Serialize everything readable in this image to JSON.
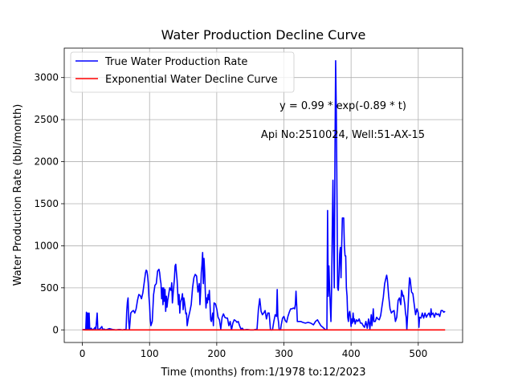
{
  "chart_data": {
    "type": "line",
    "title": "Water Production Decline Curve",
    "xlabel": "Time (months) from:1/1978 to:12/2023",
    "ylabel": "Water Production Rate (bbl/month)",
    "xlim": [
      -27,
      566
    ],
    "ylim": [
      -150,
      3350
    ],
    "xticks": [
      0,
      100,
      200,
      300,
      400,
      500
    ],
    "yticks": [
      0,
      500,
      1000,
      1500,
      2000,
      2500,
      3000
    ],
    "grid": true,
    "legend_position": "upper-left",
    "annotations": {
      "equation": "y = 0.99 * exp(-0.89 * t)",
      "well": "Api No:2510024, Well:51-AX-15"
    },
    "series": [
      {
        "name": "True Water Production Rate",
        "color": "#0000ff",
        "points": [
          [
            0,
            0
          ],
          [
            3,
            5
          ],
          [
            5,
            0
          ],
          [
            6,
            210
          ],
          [
            7,
            0
          ],
          [
            8,
            200
          ],
          [
            9,
            5
          ],
          [
            10,
            200
          ],
          [
            11,
            0
          ],
          [
            13,
            20
          ],
          [
            15,
            0
          ],
          [
            17,
            10
          ],
          [
            19,
            30
          ],
          [
            20,
            0
          ],
          [
            22,
            200
          ],
          [
            23,
            10
          ],
          [
            25,
            5
          ],
          [
            27,
            20
          ],
          [
            29,
            40
          ],
          [
            30,
            5
          ],
          [
            32,
            10
          ],
          [
            35,
            0
          ],
          [
            40,
            15
          ],
          [
            45,
            5
          ],
          [
            50,
            0
          ],
          [
            55,
            5
          ],
          [
            60,
            0
          ],
          [
            63,
            5
          ],
          [
            65,
            0
          ],
          [
            66,
            220
          ],
          [
            67,
            330
          ],
          [
            68,
            380
          ],
          [
            69,
            100
          ],
          [
            70,
            0
          ],
          [
            72,
            200
          ],
          [
            74,
            220
          ],
          [
            76,
            230
          ],
          [
            78,
            200
          ],
          [
            80,
            250
          ],
          [
            82,
            350
          ],
          [
            84,
            420
          ],
          [
            86,
            410
          ],
          [
            88,
            370
          ],
          [
            90,
            440
          ],
          [
            92,
            560
          ],
          [
            94,
            680
          ],
          [
            95,
            710
          ],
          [
            96,
            700
          ],
          [
            97,
            650
          ],
          [
            98,
            560
          ],
          [
            99,
            400
          ],
          [
            100,
            300
          ],
          [
            101,
            130
          ],
          [
            102,
            50
          ],
          [
            104,
            100
          ],
          [
            106,
            420
          ],
          [
            108,
            530
          ],
          [
            110,
            550
          ],
          [
            112,
            700
          ],
          [
            114,
            720
          ],
          [
            115,
            680
          ],
          [
            116,
            600
          ],
          [
            117,
            550
          ],
          [
            118,
            370
          ],
          [
            119,
            500
          ],
          [
            120,
            300
          ],
          [
            121,
            500
          ],
          [
            122,
            340
          ],
          [
            123,
            480
          ],
          [
            124,
            220
          ],
          [
            125,
            400
          ],
          [
            126,
            270
          ],
          [
            127,
            350
          ],
          [
            128,
            400
          ],
          [
            129,
            450
          ],
          [
            130,
            500
          ],
          [
            132,
            470
          ],
          [
            133,
            560
          ],
          [
            134,
            320
          ],
          [
            135,
            420
          ],
          [
            137,
            610
          ],
          [
            138,
            760
          ],
          [
            139,
            780
          ],
          [
            140,
            680
          ],
          [
            141,
            590
          ],
          [
            142,
            430
          ],
          [
            143,
            300
          ],
          [
            144,
            420
          ],
          [
            145,
            200
          ],
          [
            146,
            330
          ],
          [
            148,
            380
          ],
          [
            149,
            430
          ],
          [
            150,
            240
          ],
          [
            151,
            380
          ],
          [
            152,
            330
          ],
          [
            153,
            260
          ],
          [
            154,
            190
          ],
          [
            155,
            200
          ],
          [
            156,
            50
          ],
          [
            158,
            150
          ],
          [
            160,
            220
          ],
          [
            162,
            300
          ],
          [
            164,
            500
          ],
          [
            166,
            620
          ],
          [
            168,
            660
          ],
          [
            170,
            640
          ],
          [
            172,
            450
          ],
          [
            174,
            550
          ],
          [
            175,
            300
          ],
          [
            176,
            450
          ],
          [
            177,
            680
          ],
          [
            178,
            770
          ],
          [
            179,
            920
          ],
          [
            180,
            550
          ],
          [
            181,
            850
          ],
          [
            182,
            700
          ],
          [
            183,
            450
          ],
          [
            184,
            260
          ],
          [
            185,
            380
          ],
          [
            186,
            320
          ],
          [
            187,
            420
          ],
          [
            188,
            360
          ],
          [
            189,
            470
          ],
          [
            190,
            300
          ],
          [
            191,
            120
          ],
          [
            192,
            100
          ],
          [
            194,
            200
          ],
          [
            195,
            50
          ],
          [
            196,
            320
          ],
          [
            198,
            310
          ],
          [
            200,
            250
          ],
          [
            202,
            150
          ],
          [
            204,
            120
          ],
          [
            206,
            10
          ],
          [
            208,
            150
          ],
          [
            210,
            190
          ],
          [
            212,
            150
          ],
          [
            214,
            140
          ],
          [
            216,
            140
          ],
          [
            218,
            50
          ],
          [
            220,
            100
          ],
          [
            222,
            0
          ],
          [
            224,
            80
          ],
          [
            226,
            120
          ],
          [
            228,
            110
          ],
          [
            230,
            90
          ],
          [
            232,
            100
          ],
          [
            234,
            50
          ],
          [
            236,
            10
          ],
          [
            238,
            20
          ],
          [
            240,
            0
          ],
          [
            245,
            5
          ],
          [
            250,
            0
          ],
          [
            255,
            0
          ],
          [
            260,
            10
          ],
          [
            262,
            240
          ],
          [
            264,
            370
          ],
          [
            265,
            300
          ],
          [
            266,
            220
          ],
          [
            268,
            180
          ],
          [
            270,
            200
          ],
          [
            272,
            230
          ],
          [
            274,
            130
          ],
          [
            276,
            200
          ],
          [
            278,
            200
          ],
          [
            280,
            0
          ],
          [
            283,
            0
          ],
          [
            285,
            100
          ],
          [
            287,
            180
          ],
          [
            289,
            160
          ],
          [
            290,
            480
          ],
          [
            291,
            150
          ],
          [
            292,
            90
          ],
          [
            293,
            0
          ],
          [
            295,
            0
          ],
          [
            296,
            60
          ],
          [
            298,
            140
          ],
          [
            300,
            160
          ],
          [
            302,
            110
          ],
          [
            304,
            90
          ],
          [
            306,
            160
          ],
          [
            308,
            210
          ],
          [
            310,
            250
          ],
          [
            312,
            250
          ],
          [
            314,
            260
          ],
          [
            316,
            250
          ],
          [
            317,
            300
          ],
          [
            318,
            460
          ],
          [
            319,
            300
          ],
          [
            320,
            100
          ],
          [
            322,
            100
          ],
          [
            325,
            100
          ],
          [
            328,
            90
          ],
          [
            332,
            80
          ],
          [
            336,
            90
          ],
          [
            340,
            80
          ],
          [
            344,
            60
          ],
          [
            347,
            100
          ],
          [
            350,
            120
          ],
          [
            352,
            90
          ],
          [
            355,
            50
          ],
          [
            358,
            30
          ],
          [
            362,
            0
          ],
          [
            364,
            5
          ],
          [
            365,
            1420
          ],
          [
            366,
            400
          ],
          [
            367,
            760
          ],
          [
            368,
            500
          ],
          [
            369,
            300
          ],
          [
            370,
            100
          ],
          [
            371,
            500
          ],
          [
            372,
            1200
          ],
          [
            373,
            1780
          ],
          [
            374,
            1000
          ],
          [
            375,
            500
          ],
          [
            376,
            2100
          ],
          [
            377,
            3200
          ],
          [
            378,
            2600
          ],
          [
            379,
            1600
          ],
          [
            380,
            500
          ],
          [
            381,
            470
          ],
          [
            382,
            650
          ],
          [
            383,
            900
          ],
          [
            384,
            980
          ],
          [
            385,
            620
          ],
          [
            386,
            1000
          ],
          [
            387,
            1330
          ],
          [
            389,
            1330
          ],
          [
            390,
            1000
          ],
          [
            391,
            880
          ],
          [
            392,
            880
          ],
          [
            393,
            500
          ],
          [
            394,
            400
          ],
          [
            395,
            150
          ],
          [
            396,
            100
          ],
          [
            397,
            200
          ],
          [
            398,
            220
          ],
          [
            399,
            150
          ],
          [
            400,
            40
          ],
          [
            401,
            130
          ],
          [
            402,
            80
          ],
          [
            403,
            200
          ],
          [
            404,
            100
          ],
          [
            405,
            130
          ],
          [
            406,
            70
          ],
          [
            408,
            120
          ],
          [
            410,
            100
          ],
          [
            412,
            130
          ],
          [
            414,
            80
          ],
          [
            416,
            80
          ],
          [
            418,
            50
          ],
          [
            420,
            30
          ],
          [
            422,
            100
          ],
          [
            424,
            20
          ],
          [
            426,
            130
          ],
          [
            427,
            80
          ],
          [
            428,
            10
          ],
          [
            430,
            180
          ],
          [
            431,
            50
          ],
          [
            432,
            130
          ],
          [
            433,
            250
          ],
          [
            434,
            100
          ],
          [
            436,
            100
          ],
          [
            438,
            150
          ],
          [
            440,
            130
          ],
          [
            442,
            120
          ],
          [
            444,
            170
          ],
          [
            446,
            280
          ],
          [
            448,
            390
          ],
          [
            450,
            550
          ],
          [
            452,
            620
          ],
          [
            453,
            650
          ],
          [
            454,
            600
          ],
          [
            456,
            400
          ],
          [
            458,
            250
          ],
          [
            460,
            200
          ],
          [
            462,
            220
          ],
          [
            464,
            230
          ],
          [
            466,
            100
          ],
          [
            468,
            150
          ],
          [
            470,
            350
          ],
          [
            472,
            380
          ],
          [
            474,
            300
          ],
          [
            475,
            470
          ],
          [
            476,
            450
          ],
          [
            477,
            400
          ],
          [
            478,
            410
          ],
          [
            480,
            300
          ],
          [
            481,
            200
          ],
          [
            482,
            150
          ],
          [
            483,
            0
          ],
          [
            484,
            150
          ],
          [
            485,
            300
          ],
          [
            486,
            480
          ],
          [
            487,
            620
          ],
          [
            488,
            600
          ],
          [
            489,
            520
          ],
          [
            490,
            450
          ],
          [
            492,
            430
          ],
          [
            494,
            300
          ],
          [
            496,
            180
          ],
          [
            498,
            250
          ],
          [
            500,
            200
          ],
          [
            501,
            30
          ],
          [
            502,
            150
          ],
          [
            504,
            140
          ],
          [
            506,
            200
          ],
          [
            508,
            140
          ],
          [
            510,
            200
          ],
          [
            512,
            150
          ],
          [
            514,
            180
          ],
          [
            516,
            200
          ],
          [
            518,
            150
          ],
          [
            519,
            250
          ],
          [
            520,
            180
          ],
          [
            522,
            200
          ],
          [
            524,
            150
          ],
          [
            526,
            200
          ],
          [
            528,
            180
          ],
          [
            530,
            190
          ],
          [
            532,
            160
          ],
          [
            534,
            230
          ],
          [
            536,
            230
          ],
          [
            538,
            210
          ],
          [
            540,
            220
          ]
        ]
      },
      {
        "name": "Exponential Water Decline Curve",
        "color": "#ff0000",
        "points": [
          [
            0,
            0.99
          ],
          [
            1,
            0.41
          ],
          [
            5,
            0.01
          ],
          [
            540,
            0
          ]
        ]
      }
    ]
  }
}
